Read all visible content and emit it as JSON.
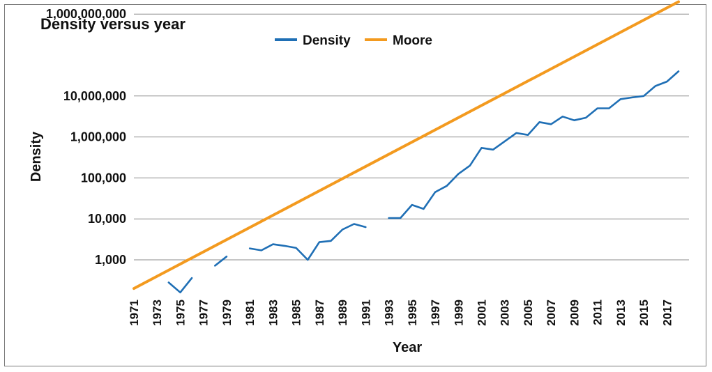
{
  "chart_data": {
    "type": "line",
    "title": "Density versus year",
    "xlabel": "Year",
    "ylabel": "Density",
    "yscale": "log",
    "ylim": [
      100,
      3000000000
    ],
    "xlim": [
      1971,
      2018
    ],
    "grid": "horizontal",
    "legend_position": "top-center",
    "y_ticks": [
      {
        "value": 1000,
        "label": "1,000"
      },
      {
        "value": 10000,
        "label": "10,000"
      },
      {
        "value": 100000,
        "label": "100,000"
      },
      {
        "value": 1000000,
        "label": "1,000,000"
      },
      {
        "value": 10000000,
        "label": "10,000,000"
      },
      {
        "value": 1000000000,
        "label": "1,000,000,000"
      }
    ],
    "x_tick_labels": [
      "1971",
      "1973",
      "1975",
      "1977",
      "1979",
      "1981",
      "1983",
      "1985",
      "1987",
      "1989",
      "1991",
      "1993",
      "1995",
      "1997",
      "1999",
      "2001",
      "2003",
      "2005",
      "2007",
      "2009",
      "2011",
      "2013",
      "2015",
      "2017"
    ],
    "series": [
      {
        "name": "Density",
        "color": "#1f6fb5",
        "points": [
          [
            1971,
            null
          ],
          [
            1972,
            null
          ],
          [
            1973,
            null
          ],
          [
            1974,
            280
          ],
          [
            1975,
            160
          ],
          [
            1976,
            360
          ],
          [
            1977,
            null
          ],
          [
            1978,
            720
          ],
          [
            1979,
            1200
          ],
          [
            1980,
            null
          ],
          [
            1981,
            1900
          ],
          [
            1982,
            1700
          ],
          [
            1983,
            2400
          ],
          [
            1984,
            2200
          ],
          [
            1985,
            1950
          ],
          [
            1986,
            1000
          ],
          [
            1987,
            2700
          ],
          [
            1988,
            2900
          ],
          [
            1989,
            5500
          ],
          [
            1990,
            7500
          ],
          [
            1991,
            6300
          ],
          [
            1992,
            null
          ],
          [
            1993,
            10500
          ],
          [
            1994,
            10500
          ],
          [
            1995,
            22000
          ],
          [
            1996,
            17500
          ],
          [
            1997,
            45000
          ],
          [
            1998,
            64000
          ],
          [
            1999,
            125000
          ],
          [
            2000,
            200000
          ],
          [
            2001,
            540000
          ],
          [
            2002,
            490000
          ],
          [
            2003,
            780000
          ],
          [
            2004,
            1250000
          ],
          [
            2005,
            1120000
          ],
          [
            2006,
            2300000
          ],
          [
            2007,
            2050000
          ],
          [
            2008,
            3150000
          ],
          [
            2009,
            2550000
          ],
          [
            2010,
            2950000
          ],
          [
            2011,
            5000000
          ],
          [
            2012,
            5000000
          ],
          [
            2013,
            8400000
          ],
          [
            2014,
            9200000
          ],
          [
            2015,
            10000000
          ],
          [
            2016,
            17500000
          ],
          [
            2017,
            22500000
          ],
          [
            2018,
            40000000
          ]
        ]
      },
      {
        "name": "Moore",
        "color": "#f39a1f",
        "points": [
          [
            1971,
            200
          ],
          [
            2018,
            2000000000
          ]
        ]
      }
    ]
  }
}
